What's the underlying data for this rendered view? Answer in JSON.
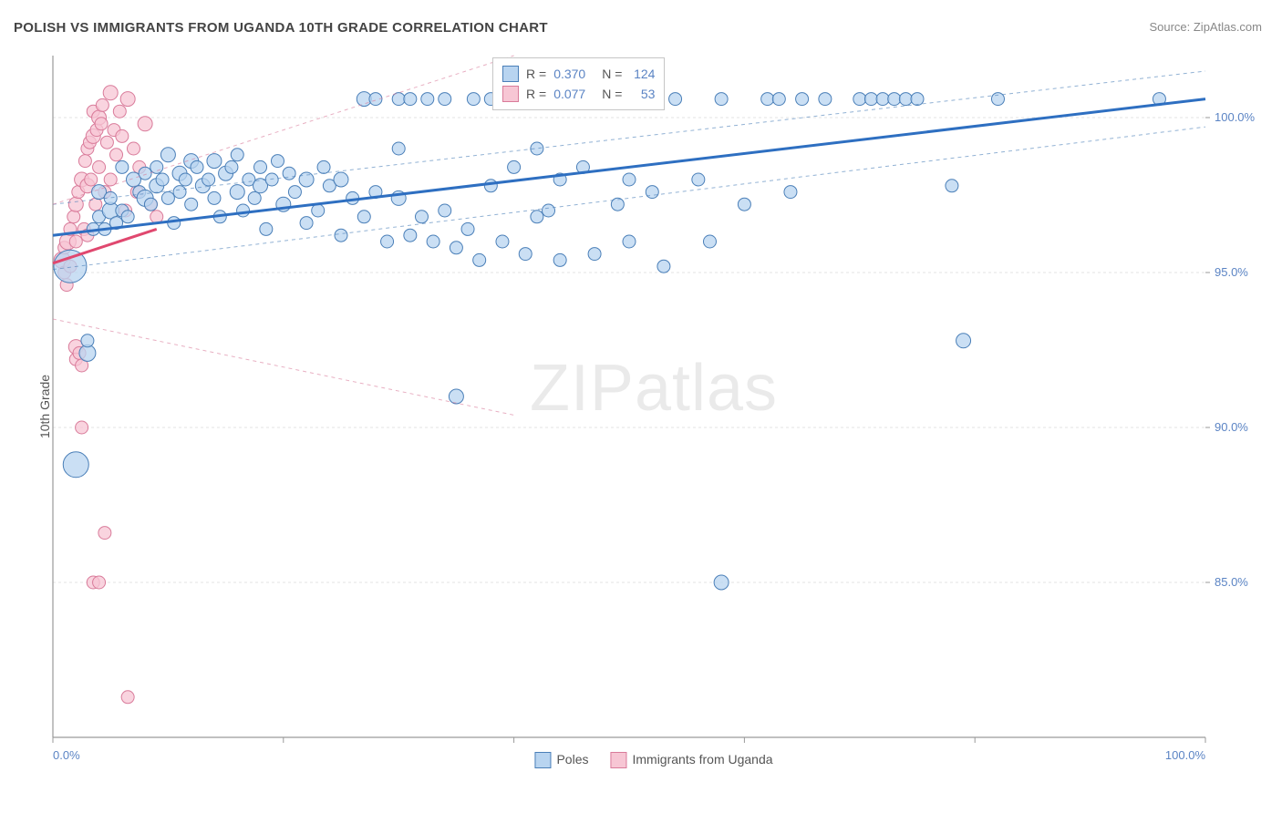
{
  "title": "POLISH VS IMMIGRANTS FROM UGANDA 10TH GRADE CORRELATION CHART",
  "source_label": "Source: ",
  "source_site": "ZipAtlas.com",
  "ylabel": "10th Grade",
  "watermark_a": "ZIP",
  "watermark_b": "atlas",
  "chart": {
    "type": "scatter",
    "background_color": "#ffffff",
    "grid_color": "#e3e3e3",
    "axis_color": "#9a9a9a",
    "xlim": [
      0,
      100
    ],
    "ylim": [
      80,
      102
    ],
    "xtick_positions": [
      0,
      20,
      40,
      60,
      80,
      100
    ],
    "xtick_labels": [
      "0.0%",
      "",
      "",
      "",
      "",
      "100.0%"
    ],
    "ytick_positions": [
      85,
      90,
      95,
      100
    ],
    "ytick_labels": [
      "85.0%",
      "90.0%",
      "95.0%",
      "100.0%"
    ],
    "stats_box": {
      "bg": "#ffffff",
      "border": "#c6c6c6",
      "rows": [
        {
          "swatch_fill": "#b8d4f0",
          "swatch_stroke": "#4a7fb8",
          "r_label": "R =",
          "r_value": "0.370",
          "n_label": "N =",
          "n_value": "124"
        },
        {
          "swatch_fill": "#f7c6d4",
          "swatch_stroke": "#d97b9a",
          "r_label": "R =",
          "r_value": "0.077",
          "n_label": "N =",
          "n_value": "53"
        }
      ]
    },
    "legend_bottom": [
      {
        "swatch_fill": "#b8d4f0",
        "swatch_stroke": "#4a7fb8",
        "label": "Poles"
      },
      {
        "swatch_fill": "#f7c6d4",
        "swatch_stroke": "#d97b9a",
        "label": "Immigrants from Uganda"
      }
    ],
    "series": [
      {
        "name": "Poles",
        "marker_fill": "#b8d4f0",
        "marker_stroke": "#4a7fb8",
        "marker_opacity": 0.75,
        "marker_r_default": 8,
        "trend_color": "#2e6fc1",
        "trend_width": 3,
        "trend": {
          "x1": 0,
          "y1": 96.2,
          "x2": 100,
          "y2": 100.6
        },
        "ci_dash": "4,4",
        "ci_upper": {
          "x1": 0,
          "y1": 97.2,
          "x2": 100,
          "y2": 101.5
        },
        "ci_lower": {
          "x1": 0,
          "y1": 95.1,
          "x2": 100,
          "y2": 99.7
        },
        "points": [
          {
            "x": 1.5,
            "y": 95.2,
            "r": 18
          },
          {
            "x": 2,
            "y": 88.8,
            "r": 14
          },
          {
            "x": 3,
            "y": 92.4,
            "r": 9
          },
          {
            "x": 3,
            "y": 92.8,
            "r": 7
          },
          {
            "x": 3.5,
            "y": 96.4,
            "r": 7
          },
          {
            "x": 4,
            "y": 97.6,
            "r": 8
          },
          {
            "x": 4,
            "y": 96.8,
            "r": 7
          },
          {
            "x": 4.5,
            "y": 96.4,
            "r": 7
          },
          {
            "x": 5,
            "y": 97.0,
            "r": 9
          },
          {
            "x": 5,
            "y": 97.4,
            "r": 7
          },
          {
            "x": 5.5,
            "y": 96.6,
            "r": 7
          },
          {
            "x": 6,
            "y": 98.4,
            "r": 7
          },
          {
            "x": 6,
            "y": 97.0,
            "r": 7
          },
          {
            "x": 6.5,
            "y": 96.8,
            "r": 7
          },
          {
            "x": 7,
            "y": 98.0,
            "r": 8
          },
          {
            "x": 7.5,
            "y": 97.6,
            "r": 7
          },
          {
            "x": 8,
            "y": 97.4,
            "r": 9
          },
          {
            "x": 8,
            "y": 98.2,
            "r": 7
          },
          {
            "x": 8.5,
            "y": 97.2,
            "r": 7
          },
          {
            "x": 9,
            "y": 97.8,
            "r": 8
          },
          {
            "x": 9,
            "y": 98.4,
            "r": 7
          },
          {
            "x": 9.5,
            "y": 98.0,
            "r": 7
          },
          {
            "x": 10,
            "y": 98.8,
            "r": 8
          },
          {
            "x": 10,
            "y": 97.4,
            "r": 7
          },
          {
            "x": 10.5,
            "y": 96.6,
            "r": 7
          },
          {
            "x": 11,
            "y": 98.2,
            "r": 8
          },
          {
            "x": 11,
            "y": 97.6,
            "r": 7
          },
          {
            "x": 11.5,
            "y": 98.0,
            "r": 7
          },
          {
            "x": 12,
            "y": 98.6,
            "r": 8
          },
          {
            "x": 12,
            "y": 97.2,
            "r": 7
          },
          {
            "x": 12.5,
            "y": 98.4,
            "r": 7
          },
          {
            "x": 13,
            "y": 97.8,
            "r": 8
          },
          {
            "x": 13.5,
            "y": 98.0,
            "r": 7
          },
          {
            "x": 14,
            "y": 98.6,
            "r": 8
          },
          {
            "x": 14,
            "y": 97.4,
            "r": 7
          },
          {
            "x": 14.5,
            "y": 96.8,
            "r": 7
          },
          {
            "x": 15,
            "y": 98.2,
            "r": 8
          },
          {
            "x": 15.5,
            "y": 98.4,
            "r": 7
          },
          {
            "x": 16,
            "y": 97.6,
            "r": 8
          },
          {
            "x": 16,
            "y": 98.8,
            "r": 7
          },
          {
            "x": 16.5,
            "y": 97.0,
            "r": 7
          },
          {
            "x": 17,
            "y": 98.0,
            "r": 7
          },
          {
            "x": 17.5,
            "y": 97.4,
            "r": 7
          },
          {
            "x": 18,
            "y": 97.8,
            "r": 8
          },
          {
            "x": 18,
            "y": 98.4,
            "r": 7
          },
          {
            "x": 18.5,
            "y": 96.4,
            "r": 7
          },
          {
            "x": 19,
            "y": 98.0,
            "r": 7
          },
          {
            "x": 19.5,
            "y": 98.6,
            "r": 7
          },
          {
            "x": 20,
            "y": 97.2,
            "r": 8
          },
          {
            "x": 20.5,
            "y": 98.2,
            "r": 7
          },
          {
            "x": 21,
            "y": 97.6,
            "r": 7
          },
          {
            "x": 22,
            "y": 98.0,
            "r": 8
          },
          {
            "x": 22,
            "y": 96.6,
            "r": 7
          },
          {
            "x": 23,
            "y": 97.0,
            "r": 7
          },
          {
            "x": 23.5,
            "y": 98.4,
            "r": 7
          },
          {
            "x": 24,
            "y": 97.8,
            "r": 7
          },
          {
            "x": 25,
            "y": 98.0,
            "r": 8
          },
          {
            "x": 25,
            "y": 96.2,
            "r": 7
          },
          {
            "x": 26,
            "y": 97.4,
            "r": 7
          },
          {
            "x": 27,
            "y": 96.8,
            "r": 7
          },
          {
            "x": 27,
            "y": 100.6,
            "r": 8
          },
          {
            "x": 28,
            "y": 97.6,
            "r": 7
          },
          {
            "x": 28,
            "y": 100.6,
            "r": 7
          },
          {
            "x": 29,
            "y": 96.0,
            "r": 7
          },
          {
            "x": 30,
            "y": 97.4,
            "r": 8
          },
          {
            "x": 30,
            "y": 99.0,
            "r": 7
          },
          {
            "x": 30,
            "y": 100.6,
            "r": 7
          },
          {
            "x": 31,
            "y": 96.2,
            "r": 7
          },
          {
            "x": 31,
            "y": 100.6,
            "r": 7
          },
          {
            "x": 32,
            "y": 96.8,
            "r": 7
          },
          {
            "x": 32.5,
            "y": 100.6,
            "r": 7
          },
          {
            "x": 33,
            "y": 96.0,
            "r": 7
          },
          {
            "x": 34,
            "y": 97.0,
            "r": 7
          },
          {
            "x": 34,
            "y": 100.6,
            "r": 7
          },
          {
            "x": 35,
            "y": 95.8,
            "r": 7
          },
          {
            "x": 35,
            "y": 91.0,
            "r": 8
          },
          {
            "x": 36,
            "y": 96.4,
            "r": 7
          },
          {
            "x": 36.5,
            "y": 100.6,
            "r": 7
          },
          {
            "x": 37,
            "y": 95.4,
            "r": 7
          },
          {
            "x": 38,
            "y": 97.8,
            "r": 7
          },
          {
            "x": 38,
            "y": 100.6,
            "r": 7
          },
          {
            "x": 39,
            "y": 96.0,
            "r": 7
          },
          {
            "x": 40,
            "y": 98.4,
            "r": 7
          },
          {
            "x": 40,
            "y": 100.6,
            "r": 7
          },
          {
            "x": 41,
            "y": 95.6,
            "r": 7
          },
          {
            "x": 42,
            "y": 99.0,
            "r": 7
          },
          {
            "x": 42,
            "y": 96.8,
            "r": 7
          },
          {
            "x": 43,
            "y": 97.0,
            "r": 7
          },
          {
            "x": 44,
            "y": 95.4,
            "r": 7
          },
          {
            "x": 44,
            "y": 98.0,
            "r": 7
          },
          {
            "x": 45,
            "y": 100.6,
            "r": 7
          },
          {
            "x": 46,
            "y": 98.4,
            "r": 7
          },
          {
            "x": 47,
            "y": 95.6,
            "r": 7
          },
          {
            "x": 48,
            "y": 100.6,
            "r": 7
          },
          {
            "x": 49,
            "y": 97.2,
            "r": 7
          },
          {
            "x": 50,
            "y": 96.0,
            "r": 7
          },
          {
            "x": 50,
            "y": 98.0,
            "r": 7
          },
          {
            "x": 52,
            "y": 97.6,
            "r": 7
          },
          {
            "x": 53,
            "y": 95.2,
            "r": 7
          },
          {
            "x": 54,
            "y": 100.6,
            "r": 7
          },
          {
            "x": 56,
            "y": 98.0,
            "r": 7
          },
          {
            "x": 57,
            "y": 96.0,
            "r": 7
          },
          {
            "x": 58,
            "y": 100.6,
            "r": 7
          },
          {
            "x": 58,
            "y": 85.0,
            "r": 8
          },
          {
            "x": 60,
            "y": 97.2,
            "r": 7
          },
          {
            "x": 62,
            "y": 100.6,
            "r": 7
          },
          {
            "x": 63,
            "y": 100.6,
            "r": 7
          },
          {
            "x": 64,
            "y": 97.6,
            "r": 7
          },
          {
            "x": 65,
            "y": 100.6,
            "r": 7
          },
          {
            "x": 67,
            "y": 100.6,
            "r": 7
          },
          {
            "x": 70,
            "y": 100.6,
            "r": 7
          },
          {
            "x": 71,
            "y": 100.6,
            "r": 7
          },
          {
            "x": 72,
            "y": 100.6,
            "r": 7
          },
          {
            "x": 73,
            "y": 100.6,
            "r": 7
          },
          {
            "x": 74,
            "y": 100.6,
            "r": 7
          },
          {
            "x": 75,
            "y": 100.6,
            "r": 7
          },
          {
            "x": 78,
            "y": 97.8,
            "r": 7
          },
          {
            "x": 79,
            "y": 92.8,
            "r": 8
          },
          {
            "x": 82,
            "y": 100.6,
            "r": 7
          },
          {
            "x": 96,
            "y": 100.6,
            "r": 7
          }
        ]
      },
      {
        "name": "Immigrants from Uganda",
        "marker_fill": "#f7c6d4",
        "marker_stroke": "#d97b9a",
        "marker_opacity": 0.75,
        "marker_r_default": 7,
        "trend_color": "#e0486f",
        "trend_width": 3,
        "trend": {
          "x1": 0,
          "y1": 95.3,
          "x2": 9,
          "y2": 96.4
        },
        "ci_dash": "4,4",
        "ci_upper": {
          "x1": 0,
          "y1": 97.2,
          "x2": 40,
          "y2": 102.0
        },
        "ci_lower": {
          "x1": 0,
          "y1": 93.5,
          "x2": 40,
          "y2": 90.4
        },
        "points": [
          {
            "x": 0.8,
            "y": 95.4,
            "r": 9
          },
          {
            "x": 1,
            "y": 95.0,
            "r": 7
          },
          {
            "x": 1,
            "y": 95.8,
            "r": 7
          },
          {
            "x": 1.2,
            "y": 94.6,
            "r": 7
          },
          {
            "x": 1.3,
            "y": 96.0,
            "r": 9
          },
          {
            "x": 1.5,
            "y": 96.4,
            "r": 7
          },
          {
            "x": 1.5,
            "y": 95.2,
            "r": 7
          },
          {
            "x": 1.8,
            "y": 96.8,
            "r": 7
          },
          {
            "x": 2,
            "y": 97.2,
            "r": 8
          },
          {
            "x": 2,
            "y": 96.0,
            "r": 7
          },
          {
            "x": 2,
            "y": 92.6,
            "r": 8
          },
          {
            "x": 2,
            "y": 92.2,
            "r": 7
          },
          {
            "x": 2.2,
            "y": 97.6,
            "r": 7
          },
          {
            "x": 2.3,
            "y": 92.4,
            "r": 7
          },
          {
            "x": 2.5,
            "y": 98.0,
            "r": 8
          },
          {
            "x": 2.5,
            "y": 92.0,
            "r": 7
          },
          {
            "x": 2.5,
            "y": 90.0,
            "r": 7
          },
          {
            "x": 2.7,
            "y": 96.4,
            "r": 7
          },
          {
            "x": 2.8,
            "y": 98.6,
            "r": 7
          },
          {
            "x": 3,
            "y": 97.8,
            "r": 8
          },
          {
            "x": 3,
            "y": 99.0,
            "r": 7
          },
          {
            "x": 3,
            "y": 96.2,
            "r": 7
          },
          {
            "x": 3.2,
            "y": 99.2,
            "r": 7
          },
          {
            "x": 3.3,
            "y": 98.0,
            "r": 7
          },
          {
            "x": 3.5,
            "y": 99.4,
            "r": 8
          },
          {
            "x": 3.5,
            "y": 100.2,
            "r": 7
          },
          {
            "x": 3.5,
            "y": 85.0,
            "r": 7
          },
          {
            "x": 3.7,
            "y": 97.2,
            "r": 7
          },
          {
            "x": 3.8,
            "y": 99.6,
            "r": 7
          },
          {
            "x": 4,
            "y": 100.0,
            "r": 8
          },
          {
            "x": 4,
            "y": 98.4,
            "r": 7
          },
          {
            "x": 4,
            "y": 85.0,
            "r": 7
          },
          {
            "x": 4.2,
            "y": 99.8,
            "r": 7
          },
          {
            "x": 4.3,
            "y": 100.4,
            "r": 7
          },
          {
            "x": 4.5,
            "y": 97.6,
            "r": 7
          },
          {
            "x": 4.5,
            "y": 86.6,
            "r": 7
          },
          {
            "x": 4.7,
            "y": 99.2,
            "r": 7
          },
          {
            "x": 5,
            "y": 100.8,
            "r": 8
          },
          {
            "x": 5,
            "y": 98.0,
            "r": 7
          },
          {
            "x": 5.3,
            "y": 99.6,
            "r": 7
          },
          {
            "x": 5.5,
            "y": 98.8,
            "r": 7
          },
          {
            "x": 5.8,
            "y": 100.2,
            "r": 7
          },
          {
            "x": 6,
            "y": 99.4,
            "r": 7
          },
          {
            "x": 6.3,
            "y": 97.0,
            "r": 7
          },
          {
            "x": 6.5,
            "y": 100.6,
            "r": 8
          },
          {
            "x": 7,
            "y": 99.0,
            "r": 7
          },
          {
            "x": 7.3,
            "y": 97.6,
            "r": 7
          },
          {
            "x": 7.5,
            "y": 98.4,
            "r": 7
          },
          {
            "x": 8,
            "y": 99.8,
            "r": 8
          },
          {
            "x": 8.5,
            "y": 97.2,
            "r": 7
          },
          {
            "x": 6.5,
            "y": 81.3,
            "r": 7
          },
          {
            "x": 9,
            "y": 96.8,
            "r": 7
          }
        ]
      }
    ]
  }
}
